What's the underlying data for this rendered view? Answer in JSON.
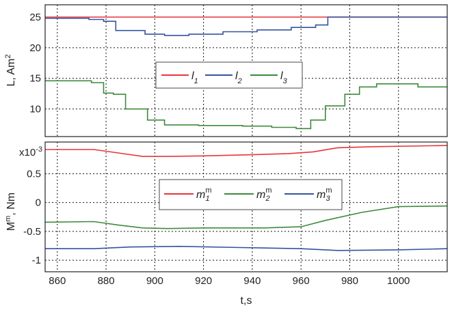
{
  "chart_data": [
    {
      "type": "line",
      "panel": "top",
      "xlabel": "",
      "ylabel": "L, Am",
      "ylabel_superscript": "2",
      "xlim": [
        855,
        1020
      ],
      "ylim": [
        5.5,
        27
      ],
      "xticks": [
        860,
        880,
        900,
        920,
        940,
        960,
        980,
        1000
      ],
      "yticks": [
        10,
        15,
        20,
        25
      ],
      "ytick_labels": [
        "10",
        "15",
        "20",
        "25"
      ],
      "grid": true,
      "legend_position": "center",
      "series": [
        {
          "name": "l",
          "subscript": "1",
          "color": "#e8343a",
          "step": true,
          "x": [
            855,
            876,
            1020
          ],
          "y": [
            25,
            25,
            25
          ]
        },
        {
          "name": "l",
          "subscript": "2",
          "color": "#3353a0",
          "step": true,
          "x": [
            855,
            873,
            879,
            884,
            896,
            904,
            914,
            928,
            942,
            956,
            966,
            971,
            1020
          ],
          "y": [
            24.8,
            24.6,
            24.3,
            22.8,
            22.2,
            22.0,
            22.2,
            22.6,
            22.9,
            23.3,
            23.7,
            25.0,
            25.0
          ]
        },
        {
          "name": "l",
          "subscript": "3",
          "color": "#3c8a3c",
          "step": true,
          "x": [
            855,
            874,
            879,
            883,
            888,
            897,
            904,
            918,
            936,
            948,
            958,
            964,
            970,
            978,
            984,
            991,
            1008,
            1020
          ],
          "y": [
            14.6,
            14.3,
            12.6,
            12.4,
            10.0,
            8.2,
            7.4,
            7.3,
            7.2,
            7.0,
            6.8,
            8.2,
            10.5,
            12.4,
            13.6,
            14.1,
            13.6,
            13.6
          ]
        }
      ]
    },
    {
      "type": "line",
      "panel": "bottom",
      "xlabel": "t,s",
      "ylabel": "M",
      "ylabel_superscript": "m",
      "ylabel_suffix": ", Nm",
      "ylabel_multiplier": "x10",
      "ylabel_multiplier_exp": "-3",
      "xlim": [
        855,
        1020
      ],
      "ylim": [
        -1.2,
        1.05
      ],
      "xticks": [
        860,
        880,
        900,
        920,
        940,
        960,
        980,
        1000
      ],
      "xtick_labels": [
        "860",
        "880",
        "900",
        "920",
        "940",
        "960",
        "980",
        "1000"
      ],
      "yticks": [
        -1,
        -0.5,
        0,
        0.5
      ],
      "ytick_labels": [
        "-1",
        "-0.5",
        "0",
        "0.5"
      ],
      "grid": true,
      "legend_position": "center",
      "series": [
        {
          "name": "m",
          "subscript": "1",
          "superscript": "m",
          "color": "#e8343a",
          "x": [
            855,
            875,
            885,
            895,
            905,
            920,
            940,
            955,
            965,
            975,
            990,
            1020
          ],
          "y": [
            0.92,
            0.92,
            0.86,
            0.8,
            0.8,
            0.81,
            0.83,
            0.85,
            0.88,
            0.95,
            0.97,
            0.99
          ]
        },
        {
          "name": "m",
          "subscript": "2",
          "superscript": "m",
          "color": "#3c8a3c",
          "x": [
            855,
            875,
            885,
            895,
            905,
            920,
            945,
            960,
            970,
            985,
            1000,
            1020
          ],
          "y": [
            -0.34,
            -0.33,
            -0.39,
            -0.44,
            -0.45,
            -0.44,
            -0.44,
            -0.42,
            -0.31,
            -0.17,
            -0.07,
            -0.06
          ]
        },
        {
          "name": "m",
          "subscript": "3",
          "superscript": "m",
          "color": "#3353a0",
          "x": [
            855,
            875,
            890,
            910,
            935,
            960,
            975,
            1000,
            1020
          ],
          "y": [
            -0.8,
            -0.8,
            -0.77,
            -0.76,
            -0.78,
            -0.8,
            -0.83,
            -0.82,
            -0.8
          ]
        }
      ]
    }
  ]
}
